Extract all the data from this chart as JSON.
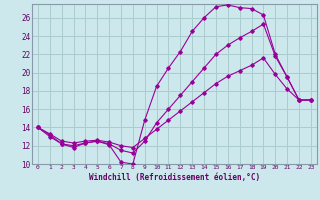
{
  "xlabel": "Windchill (Refroidissement éolien,°C)",
  "bg_color": "#cce8ec",
  "grid_color": "#aacccc",
  "line_color": "#990099",
  "xlim": [
    -0.5,
    23.5
  ],
  "ylim": [
    10,
    27.5
  ],
  "xticks": [
    0,
    1,
    2,
    3,
    4,
    5,
    6,
    7,
    8,
    9,
    10,
    11,
    12,
    13,
    14,
    15,
    16,
    17,
    18,
    19,
    20,
    21,
    22,
    23
  ],
  "yticks": [
    10,
    12,
    14,
    16,
    18,
    20,
    22,
    24,
    26
  ],
  "series": [
    {
      "x": [
        0,
        1,
        2,
        3,
        4,
        5,
        6,
        7,
        8,
        9,
        10,
        11,
        12,
        13,
        14,
        15,
        16,
        17,
        18,
        19,
        20,
        21,
        22,
        23
      ],
      "y": [
        14.0,
        13.0,
        12.2,
        11.8,
        12.3,
        12.5,
        12.1,
        10.2,
        10.0,
        14.8,
        18.5,
        20.5,
        22.3,
        24.5,
        26.0,
        27.2,
        27.4,
        27.1,
        27.0,
        26.3,
        22.0,
        19.5,
        17.0,
        17.0
      ]
    },
    {
      "x": [
        0,
        1,
        2,
        3,
        4,
        5,
        6,
        7,
        8,
        9,
        10,
        11,
        12,
        13,
        14,
        15,
        16,
        17,
        18,
        19,
        20,
        21,
        22,
        23
      ],
      "y": [
        14.0,
        13.2,
        12.2,
        12.0,
        12.3,
        12.5,
        12.2,
        11.5,
        11.2,
        12.5,
        14.5,
        16.0,
        17.5,
        19.0,
        20.5,
        22.0,
        23.0,
        23.8,
        24.5,
        25.3,
        21.8,
        19.5,
        17.0,
        17.0
      ]
    },
    {
      "x": [
        0,
        1,
        2,
        3,
        4,
        5,
        6,
        7,
        8,
        9,
        10,
        11,
        12,
        13,
        14,
        15,
        16,
        17,
        18,
        19,
        20,
        21,
        22,
        23
      ],
      "y": [
        14.0,
        13.3,
        12.5,
        12.3,
        12.5,
        12.6,
        12.4,
        12.0,
        11.8,
        12.8,
        13.8,
        14.8,
        15.8,
        16.8,
        17.8,
        18.8,
        19.6,
        20.2,
        20.8,
        21.6,
        19.8,
        18.2,
        17.0,
        17.0
      ]
    }
  ]
}
